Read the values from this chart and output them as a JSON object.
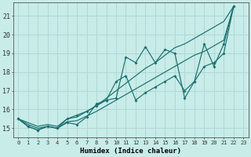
{
  "xlabel": "Humidex (Indice chaleur)",
  "bg_color": "#c8ece8",
  "grid_color": "#b0d8d4",
  "line_color": "#1a7070",
  "xlim": [
    -0.5,
    23.5
  ],
  "ylim": [
    14.5,
    21.7
  ],
  "xticks": [
    0,
    1,
    2,
    3,
    4,
    5,
    6,
    7,
    8,
    9,
    10,
    11,
    12,
    13,
    14,
    15,
    16,
    17,
    18,
    19,
    20,
    21,
    22,
    23
  ],
  "yticks": [
    15,
    16,
    17,
    18,
    19,
    20,
    21
  ],
  "series_jagged1": [
    15.5,
    15.1,
    14.9,
    15.1,
    15.0,
    15.3,
    15.2,
    15.6,
    16.3,
    16.5,
    16.6,
    18.8,
    18.5,
    19.35,
    18.5,
    19.2,
    19.0,
    16.6,
    17.5,
    19.5,
    18.3,
    19.5,
    21.5
  ],
  "series_jagged2": [
    15.5,
    15.1,
    14.9,
    15.1,
    15.0,
    15.5,
    15.7,
    15.9,
    16.2,
    16.5,
    17.5,
    17.8,
    16.5,
    16.9,
    17.2,
    17.5,
    17.8,
    17.0,
    17.5,
    18.3,
    18.5,
    19.0,
    21.5
  ],
  "series_upper": [
    15.5,
    15.3,
    15.1,
    15.2,
    15.1,
    15.5,
    15.6,
    15.9,
    16.2,
    16.6,
    17.0,
    17.4,
    17.8,
    18.2,
    18.5,
    18.9,
    19.3,
    19.5,
    19.8,
    20.1,
    20.4,
    20.7,
    21.5
  ],
  "series_lower": [
    15.5,
    15.2,
    15.0,
    15.1,
    15.0,
    15.35,
    15.4,
    15.65,
    15.9,
    16.2,
    16.5,
    16.8,
    17.1,
    17.4,
    17.7,
    18.0,
    18.3,
    18.6,
    18.9,
    19.1,
    19.4,
    19.7,
    21.5
  ]
}
